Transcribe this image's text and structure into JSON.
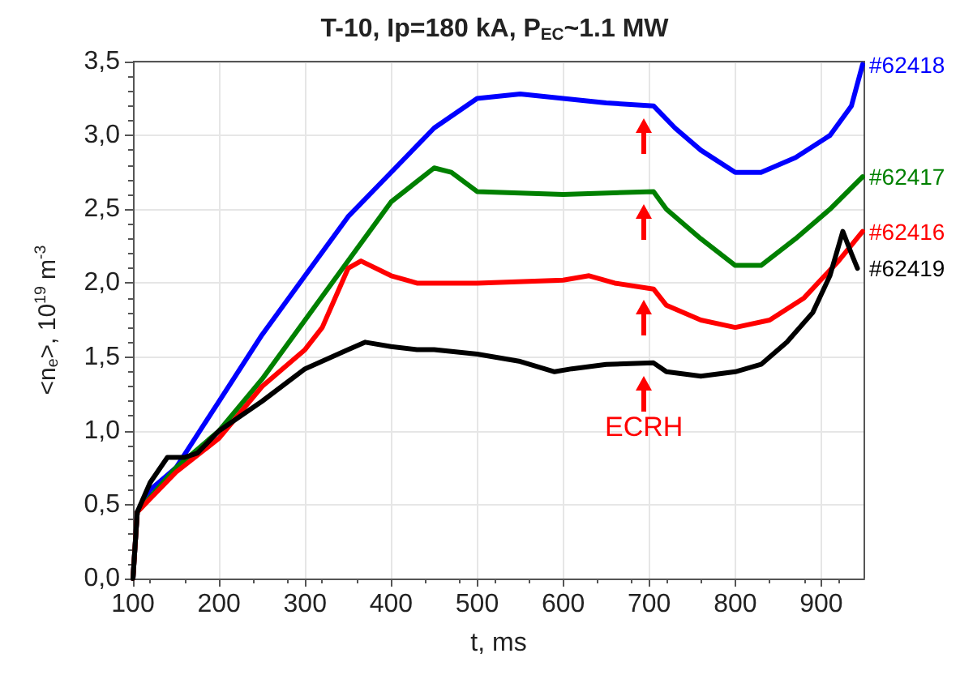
{
  "chart_data": {
    "type": "line",
    "title": "T-10, Ip=180 kA, P$_{EC}$~1.1 MW",
    "xlabel": "t, ms",
    "ylabel": "<n$_{e}$>, 10$^{19}$ m$^{-3}$",
    "annotations": [
      "ECRH"
    ],
    "xlim": [
      100,
      950
    ],
    "xticks": [
      100,
      200,
      300,
      400,
      500,
      600,
      700,
      800,
      900
    ],
    "ylim": [
      0,
      3.5
    ],
    "yticks": [
      {
        "value": 0,
        "label": "0,0"
      },
      {
        "value": 0.5,
        "label": "0,5"
      },
      {
        "value": 1,
        "label": "1,0"
      },
      {
        "value": 1.5,
        "label": "1,5"
      },
      {
        "value": 2,
        "label": "2,0"
      },
      {
        "value": 2.5,
        "label": "2,5"
      },
      {
        "value": 3,
        "label": "3,0"
      },
      {
        "value": 3.5,
        "label": "3,5"
      }
    ],
    "grid": true,
    "legend": false,
    "marker": "none",
    "line_style": "solid",
    "series": [
      {
        "name": "#62418",
        "color": "#0000ff",
        "x": [
          100,
          105,
          120,
          150,
          200,
          250,
          300,
          350,
          400,
          450,
          500,
          550,
          600,
          650,
          705,
          730,
          760,
          800,
          830,
          870,
          910,
          935,
          948
        ],
        "values": [
          0,
          0.45,
          0.6,
          0.75,
          1.2,
          1.65,
          2.05,
          2.45,
          2.75,
          3.05,
          3.25,
          3.28,
          3.25,
          3.22,
          3.2,
          3.05,
          2.9,
          2.75,
          2.75,
          2.85,
          3.0,
          3.2,
          3.48
        ]
      },
      {
        "name": "#62417",
        "color": "#008000",
        "x": [
          100,
          105,
          150,
          200,
          250,
          300,
          350,
          400,
          450,
          470,
          500,
          600,
          705,
          720,
          760,
          800,
          830,
          870,
          910,
          948
        ],
        "values": [
          0,
          0.45,
          0.75,
          1.0,
          1.35,
          1.75,
          2.15,
          2.55,
          2.78,
          2.75,
          2.62,
          2.6,
          2.62,
          2.5,
          2.3,
          2.12,
          2.12,
          2.3,
          2.5,
          2.72
        ]
      },
      {
        "name": "#62416",
        "color": "#ff0000",
        "x": [
          100,
          105,
          150,
          200,
          250,
          300,
          320,
          350,
          365,
          400,
          430,
          500,
          600,
          630,
          660,
          705,
          720,
          760,
          800,
          840,
          880,
          920,
          948
        ],
        "values": [
          0,
          0.45,
          0.72,
          0.95,
          1.3,
          1.55,
          1.7,
          2.1,
          2.15,
          2.05,
          2.0,
          2.0,
          2.02,
          2.05,
          2.0,
          1.96,
          1.85,
          1.75,
          1.7,
          1.75,
          1.9,
          2.15,
          2.35
        ]
      },
      {
        "name": "#62419",
        "color": "#000000",
        "x": [
          100,
          105,
          120,
          140,
          160,
          175,
          200,
          250,
          300,
          350,
          370,
          400,
          430,
          450,
          500,
          550,
          590,
          610,
          650,
          705,
          720,
          760,
          800,
          830,
          860,
          890,
          910,
          925,
          935,
          942
        ],
        "values": [
          0,
          0.45,
          0.65,
          0.82,
          0.82,
          0.85,
          1.0,
          1.2,
          1.42,
          1.55,
          1.6,
          1.57,
          1.55,
          1.55,
          1.52,
          1.47,
          1.4,
          1.42,
          1.45,
          1.46,
          1.4,
          1.37,
          1.4,
          1.45,
          1.6,
          1.8,
          2.05,
          2.35,
          2.2,
          2.1
        ]
      }
    ]
  }
}
